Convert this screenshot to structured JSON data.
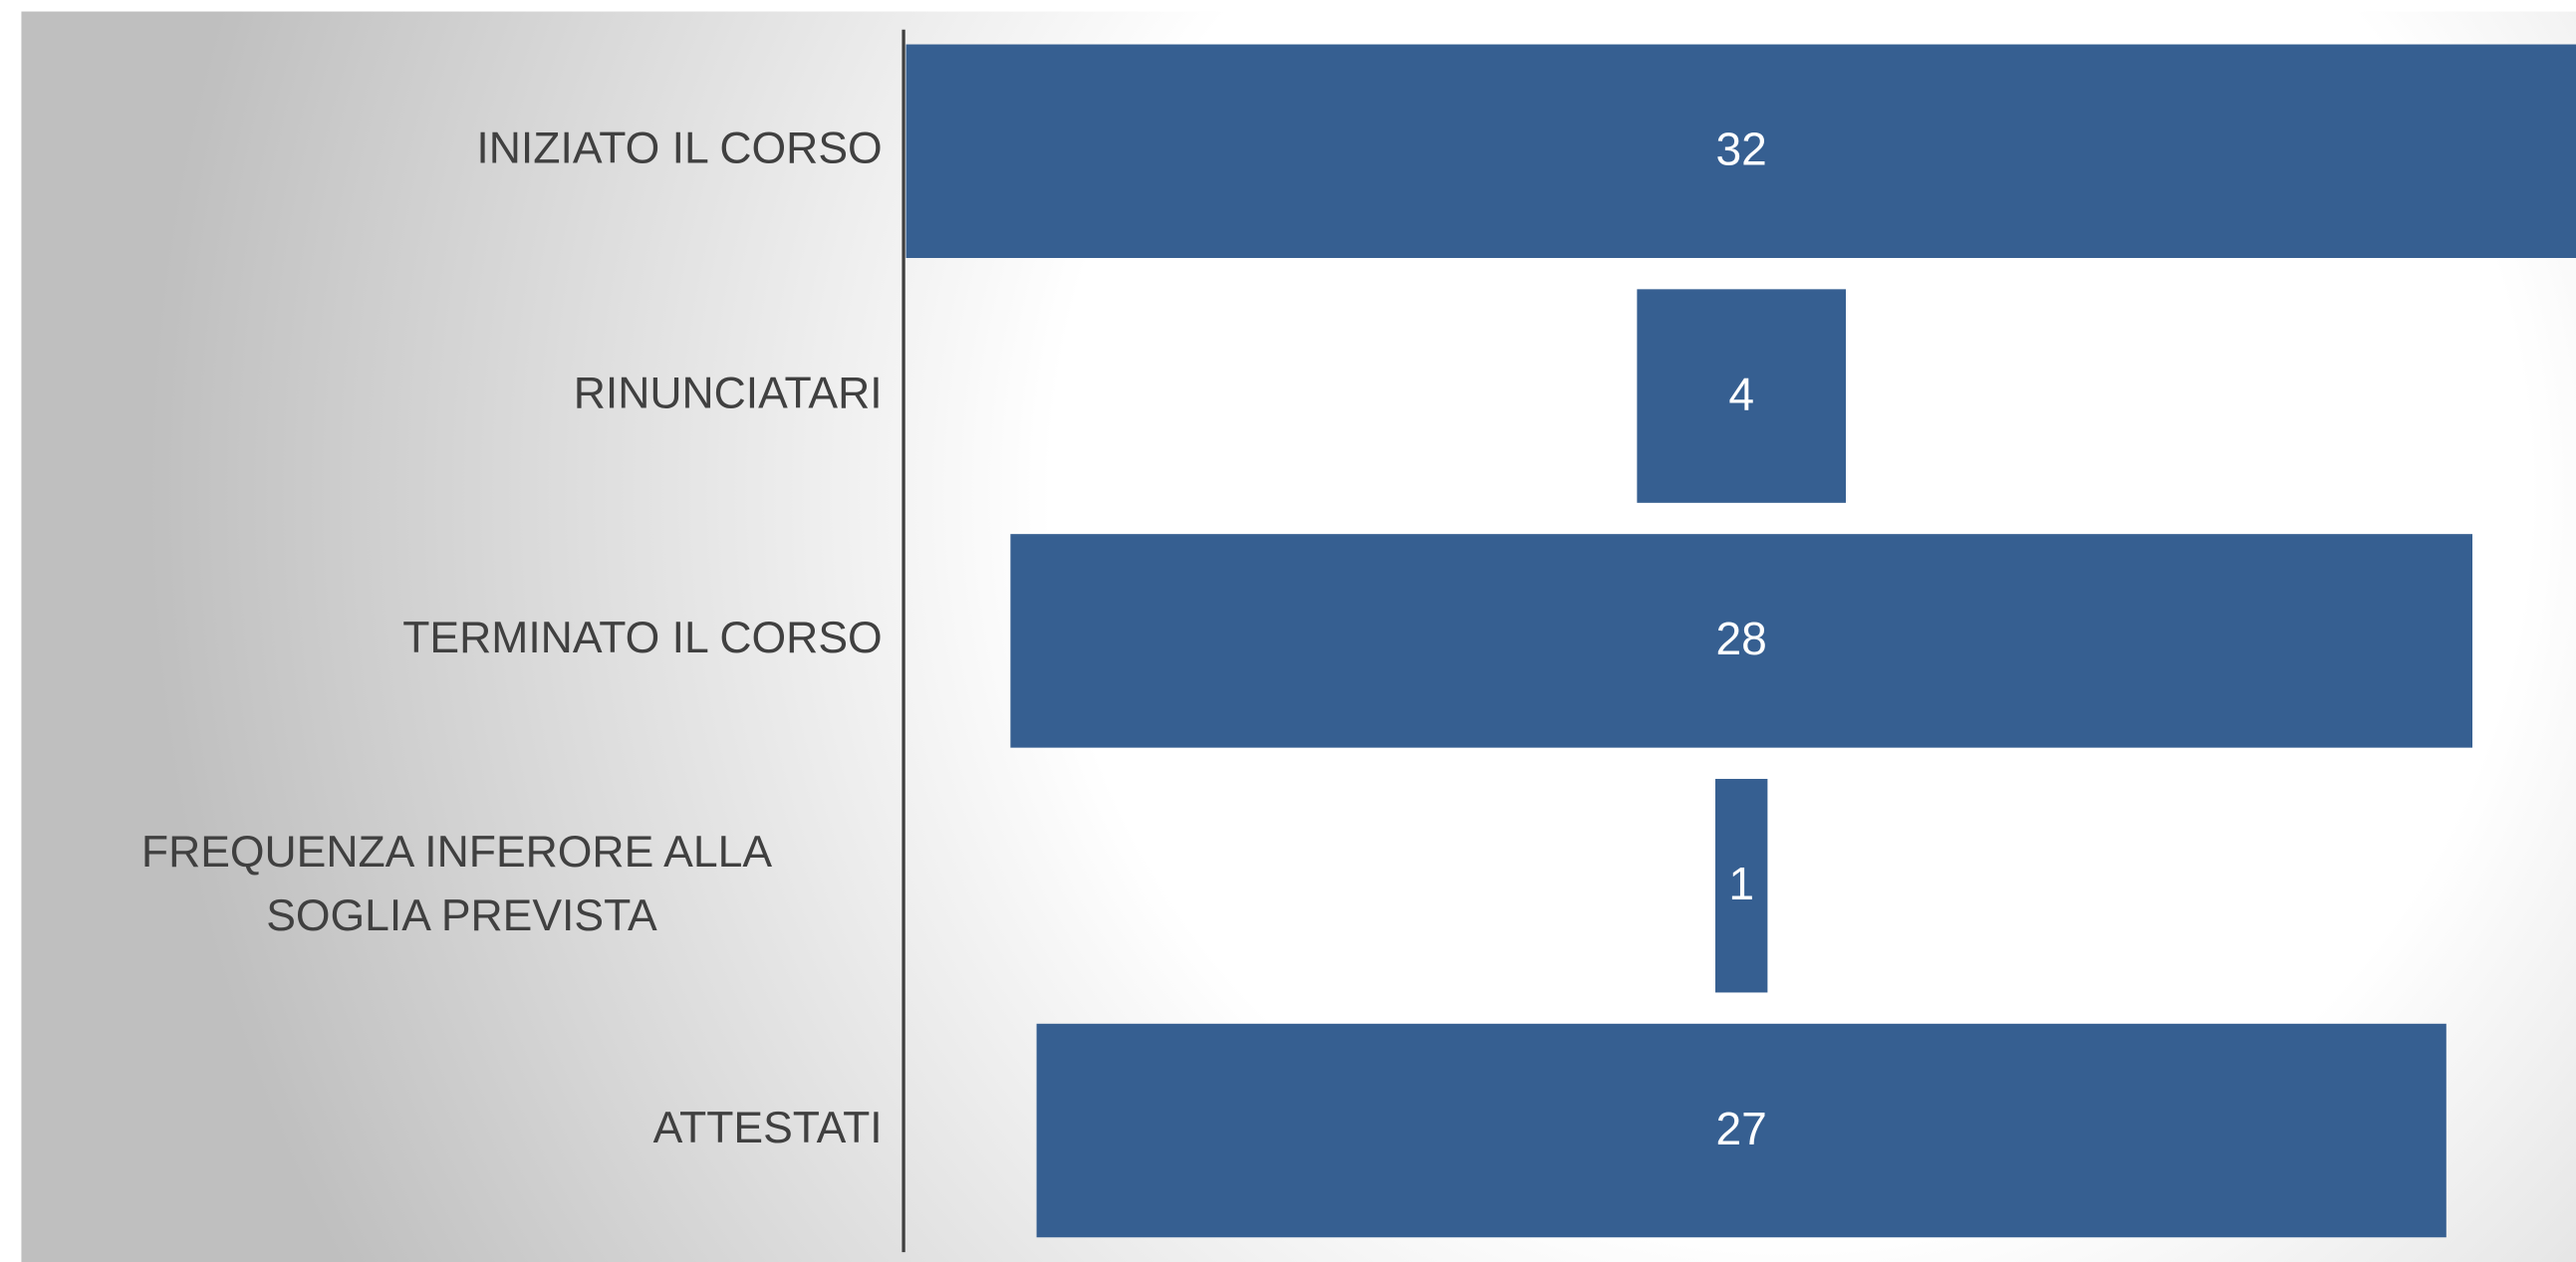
{
  "chart_data": {
    "type": "funnel",
    "categories": [
      "INIZIATO IL CORSO",
      "RINUNCIATARI",
      "TERMINATO IL CORSO",
      "FREQUENZA INFERORE ALLA SOGLIA PREVISTA",
      "ATTESTATI"
    ],
    "values": [
      32,
      4,
      28,
      1,
      27
    ],
    "color": "#365f91"
  }
}
